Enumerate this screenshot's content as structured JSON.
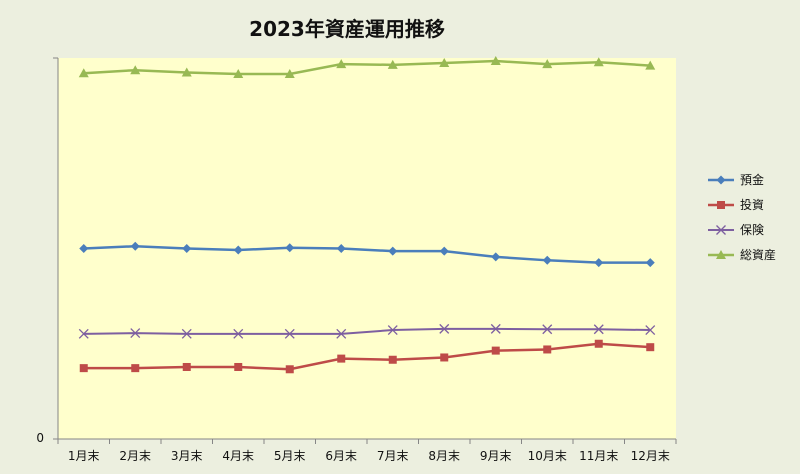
{
  "chart_data": {
    "type": "line",
    "title": "2023年資産運用推移",
    "xlabel": "",
    "ylabel": "",
    "ylim": [
      0,
      100
    ],
    "y_tick_labels": [
      "0"
    ],
    "categories": [
      "1月末",
      "2月末",
      "3月末",
      "4月末",
      "5月末",
      "6月末",
      "7月末",
      "8月末",
      "9月末",
      "10月末",
      "11月末",
      "12月末"
    ],
    "legend_position": "right",
    "grid": false,
    "plot_background": "#ffffcc",
    "series": [
      {
        "name": "預金",
        "color": "#4a7ebb",
        "marker": "diamond",
        "values": [
          50.0,
          50.6,
          50.0,
          49.6,
          50.2,
          50.0,
          49.3,
          49.3,
          47.8,
          46.9,
          46.3,
          46.3
        ]
      },
      {
        "name": "投資",
        "color": "#be4b48",
        "marker": "square",
        "values": [
          18.6,
          18.6,
          18.9,
          18.9,
          18.3,
          21.1,
          20.8,
          21.4,
          23.2,
          23.5,
          25.0,
          24.1
        ]
      },
      {
        "name": "保険",
        "color": "#7d5fa0",
        "marker": "x",
        "values": [
          27.6,
          27.8,
          27.6,
          27.6,
          27.6,
          27.6,
          28.6,
          28.9,
          28.9,
          28.8,
          28.8,
          28.6
        ]
      },
      {
        "name": "総資産",
        "color": "#98b954",
        "marker": "triangle",
        "values": [
          96.0,
          96.8,
          96.2,
          95.8,
          95.8,
          98.4,
          98.2,
          98.7,
          99.2,
          98.4,
          98.9,
          98.0
        ]
      }
    ]
  }
}
